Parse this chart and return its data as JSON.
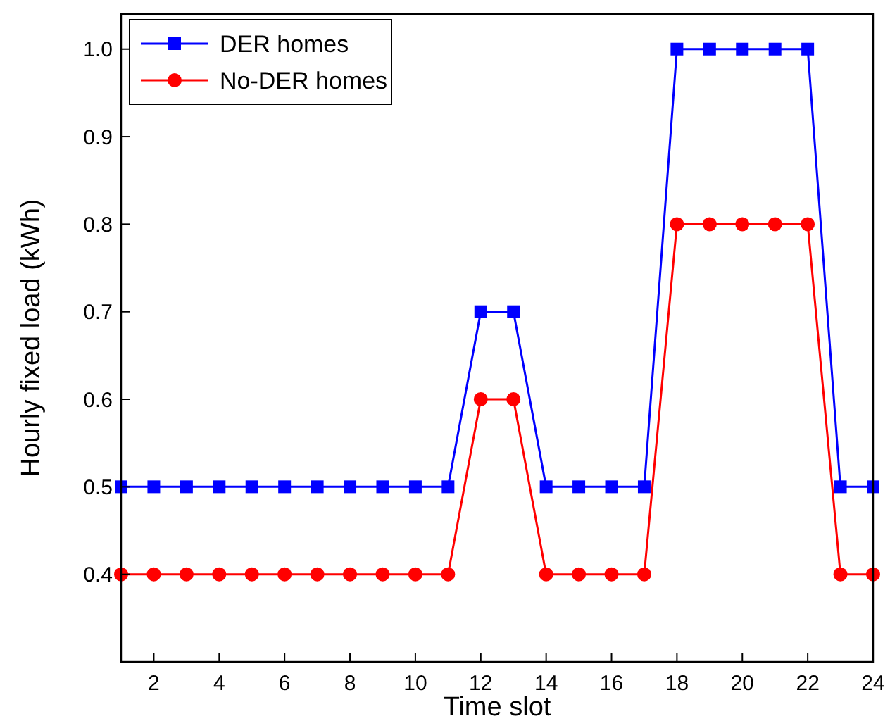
{
  "chart_data": {
    "type": "line",
    "xlabel": "Time slot",
    "ylabel": "Hourly fixed load (kWh)",
    "x": [
      1,
      2,
      3,
      4,
      5,
      6,
      7,
      8,
      9,
      10,
      11,
      12,
      13,
      14,
      15,
      16,
      17,
      18,
      19,
      20,
      21,
      22,
      23,
      24
    ],
    "series": [
      {
        "name": "DER homes",
        "color": "#0000ff",
        "marker": "square",
        "values": [
          0.5,
          0.5,
          0.5,
          0.5,
          0.5,
          0.5,
          0.5,
          0.5,
          0.5,
          0.5,
          0.5,
          0.7,
          0.7,
          0.5,
          0.5,
          0.5,
          0.5,
          1.0,
          1.0,
          1.0,
          1.0,
          1.0,
          0.5,
          0.5
        ]
      },
      {
        "name": "No-DER homes",
        "color": "#ff0000",
        "marker": "circle",
        "values": [
          0.4,
          0.4,
          0.4,
          0.4,
          0.4,
          0.4,
          0.4,
          0.4,
          0.4,
          0.4,
          0.4,
          0.6,
          0.6,
          0.4,
          0.4,
          0.4,
          0.4,
          0.8,
          0.8,
          0.8,
          0.8,
          0.8,
          0.4,
          0.4
        ]
      }
    ],
    "xlim": [
      1,
      24
    ],
    "xticks": [
      2,
      4,
      6,
      8,
      10,
      12,
      14,
      16,
      18,
      20,
      22,
      24
    ],
    "ylim": [
      0.3,
      1.04
    ],
    "yticks": [
      {
        "value": 0.4,
        "label": "0.4"
      },
      {
        "value": 0.5,
        "label": "0.5"
      },
      {
        "value": 0.6,
        "label": "0.6"
      },
      {
        "value": 0.7,
        "label": "0.7"
      },
      {
        "value": 0.8,
        "label": "0.8"
      },
      {
        "value": 0.9,
        "label": "0.9"
      },
      {
        "value": 1.0,
        "label": "1.0"
      }
    ],
    "grid": false,
    "legend": "top left",
    "line_style": "solid"
  }
}
